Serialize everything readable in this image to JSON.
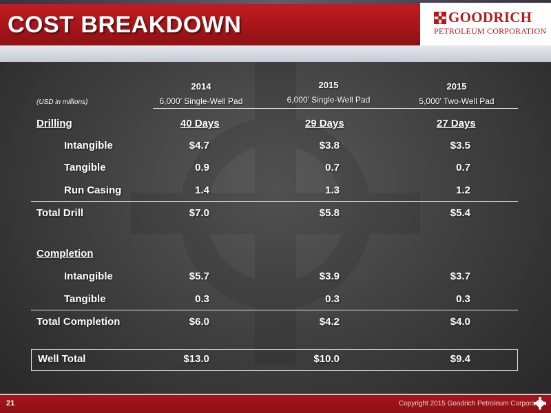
{
  "header": {
    "title": "COST BREAKDOWN",
    "logo_name": "GOODRICH",
    "logo_sub": "PETROLEUM CORPORATION"
  },
  "table": {
    "units_note": "(USD in millions)",
    "columns": [
      {
        "year": "2014",
        "desc": "6,000’ Single-Well Pad"
      },
      {
        "year": "2015",
        "desc": "6,000’ Single-Well Pad"
      },
      {
        "year": "2015",
        "desc": "5,000’  Two-Well Pad"
      }
    ],
    "drilling": {
      "label": "Drilling",
      "days": [
        "40 Days",
        "29 Days",
        "27 Days"
      ],
      "rows": [
        {
          "label": "Intangible",
          "values": [
            "$4.7",
            "$3.8",
            "$3.5"
          ]
        },
        {
          "label": "Tangible",
          "values": [
            "0.9",
            "0.7",
            "0.7"
          ]
        },
        {
          "label": "Run Casing",
          "values": [
            "1.4",
            "1.3",
            "1.2"
          ]
        }
      ],
      "total": {
        "label": "Total Drill",
        "values": [
          "$7.0",
          "$5.8",
          "$5.4"
        ]
      }
    },
    "completion": {
      "label": "Completion",
      "rows": [
        {
          "label": "Intangible",
          "values": [
            "$5.7",
            "$3.9",
            "$3.7"
          ]
        },
        {
          "label": "Tangible",
          "values": [
            "0.3",
            "0.3",
            "0.3"
          ]
        }
      ],
      "total": {
        "label": "Total Completion",
        "values": [
          "$6.0",
          "$4.2",
          "$4.0"
        ]
      }
    },
    "well_total": {
      "label": "Well Total",
      "values": [
        "$13.0",
        "$10.0",
        "$9.4"
      ]
    }
  },
  "footer": {
    "page_number": "21",
    "copyright": "Copyright 2015 Goodrich Petroleum Corporation"
  }
}
